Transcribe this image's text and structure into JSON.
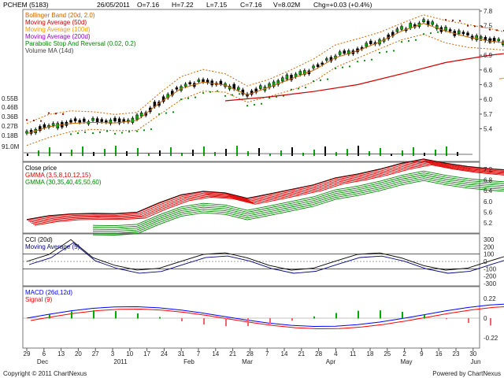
{
  "header": {
    "symbol": "PCHEM (5183)",
    "date": "26/05/2011",
    "open": "O=7.16",
    "high": "H=7.22",
    "low": "L=7.15",
    "close": "C=7.16",
    "volume": "V=8.02M",
    "change": "Chg=+0.03 (+0.4%)"
  },
  "legends": {
    "main": [
      {
        "label": "Bollinger Band (20d, 2.0)",
        "color": "#cc6600"
      },
      {
        "label": "Moving Average (50d)",
        "color": "#cc0000"
      },
      {
        "label": "Moving Average (100d)",
        "color": "#ff9900"
      },
      {
        "label": "Moving Average (200d)",
        "color": "#9900cc"
      },
      {
        "label": "Parabolic Stop And Reversal (0.02, 0.2)",
        "color": "#008800"
      },
      {
        "label": "Volume MA (14d)",
        "color": "#444444"
      }
    ],
    "gmma": [
      {
        "label": "Close price",
        "color": "#000000"
      },
      {
        "label": "GMMA (3,5,8,10,12,15)",
        "color": "#dd0000"
      },
      {
        "label": "GMMA (30,35,40,45,50,60)",
        "color": "#008800"
      }
    ],
    "cci": [
      {
        "label": "CCI (20d)",
        "color": "#000000"
      },
      {
        "label": "Moving Average (5)",
        "color": "#000080"
      }
    ],
    "macd": [
      {
        "label": "MACD (26d,12d)",
        "color": "#0000ff"
      },
      {
        "label": "Signal (9)",
        "color": "#ff0000"
      }
    ]
  },
  "x_axis": {
    "ticks": [
      "29",
      "6",
      "13",
      "20",
      "27",
      "3",
      "10",
      "17",
      "24",
      "31",
      "7",
      "14",
      "21",
      "28",
      "7",
      "14",
      "21",
      "28",
      "4",
      "11",
      "18",
      "25",
      "2",
      "9",
      "16",
      "23",
      "30"
    ],
    "months": [
      "Dec",
      "2011",
      "Feb",
      "Mar",
      "Apr",
      "May",
      "Jun"
    ]
  },
  "price_axis": [
    "7.8",
    "7.5",
    "7.2",
    "6.9",
    "6.6",
    "6.3",
    "6.0",
    "5.7",
    "5.4"
  ],
  "volume_axis": [
    "0.55B",
    "0.46B",
    "0.36B",
    "0.27B",
    "0.18B",
    "91.0M"
  ],
  "gmma_axis": [
    "7.2",
    "6.8",
    "6.4",
    "6.0",
    "5.6",
    "5.2"
  ],
  "cci_axis": [
    "300",
    "200",
    "100",
    "0",
    "-100",
    "-200",
    "-300"
  ],
  "macd_axis": [
    "0.22",
    "0",
    "-0.22"
  ],
  "footer": {
    "copyright": "Copyright © 2011 ChartNexus",
    "powered": "Powered by ChartNexus"
  },
  "chart_data": {
    "type": "line",
    "title": "PCHEM (5183)",
    "x_range": [
      "2010-11-29",
      "2011-05-26"
    ],
    "price_ylim": [
      5.2,
      7.8
    ],
    "close_series": [
      [
        "2010-11-29",
        5.33
      ],
      [
        "2010-12-06",
        5.47
      ],
      [
        "2010-12-13",
        5.54
      ],
      [
        "2010-12-20",
        5.56
      ],
      [
        "2010-12-27",
        5.55
      ],
      [
        "2011-01-03",
        5.6
      ],
      [
        "2011-01-10",
        5.95
      ],
      [
        "2011-01-17",
        6.25
      ],
      [
        "2011-01-24",
        6.38
      ],
      [
        "2011-01-31",
        6.32
      ],
      [
        "2011-02-07",
        6.12
      ],
      [
        "2011-02-14",
        6.28
      ],
      [
        "2011-02-21",
        6.45
      ],
      [
        "2011-02-28",
        6.62
      ],
      [
        "2011-03-07",
        6.88
      ],
      [
        "2011-03-14",
        7.02
      ],
      [
        "2011-03-21",
        7.2
      ],
      [
        "2011-03-28",
        7.42
      ],
      [
        "2011-04-04",
        7.58
      ],
      [
        "2011-04-11",
        7.42
      ],
      [
        "2011-04-18",
        7.3
      ],
      [
        "2011-04-25",
        7.22
      ],
      [
        "2011-05-02",
        7.16
      ],
      [
        "2011-05-09",
        6.97
      ],
      [
        "2011-05-16",
        7.0
      ],
      [
        "2011-05-23",
        7.16
      ]
    ],
    "ma50_series": [
      [
        "2011-01-31",
        5.97
      ],
      [
        "2011-02-14",
        6.05
      ],
      [
        "2011-02-28",
        6.16
      ],
      [
        "2011-03-14",
        6.3
      ],
      [
        "2011-03-28",
        6.52
      ],
      [
        "2011-04-11",
        6.75
      ],
      [
        "2011-04-25",
        6.9
      ],
      [
        "2011-05-09",
        7.0
      ],
      [
        "2011-05-23",
        7.05
      ]
    ],
    "ma100_series": [
      [
        "2011-04-28",
        6.42
      ],
      [
        "2011-05-09",
        6.5
      ],
      [
        "2011-05-23",
        6.62
      ]
    ]
  }
}
